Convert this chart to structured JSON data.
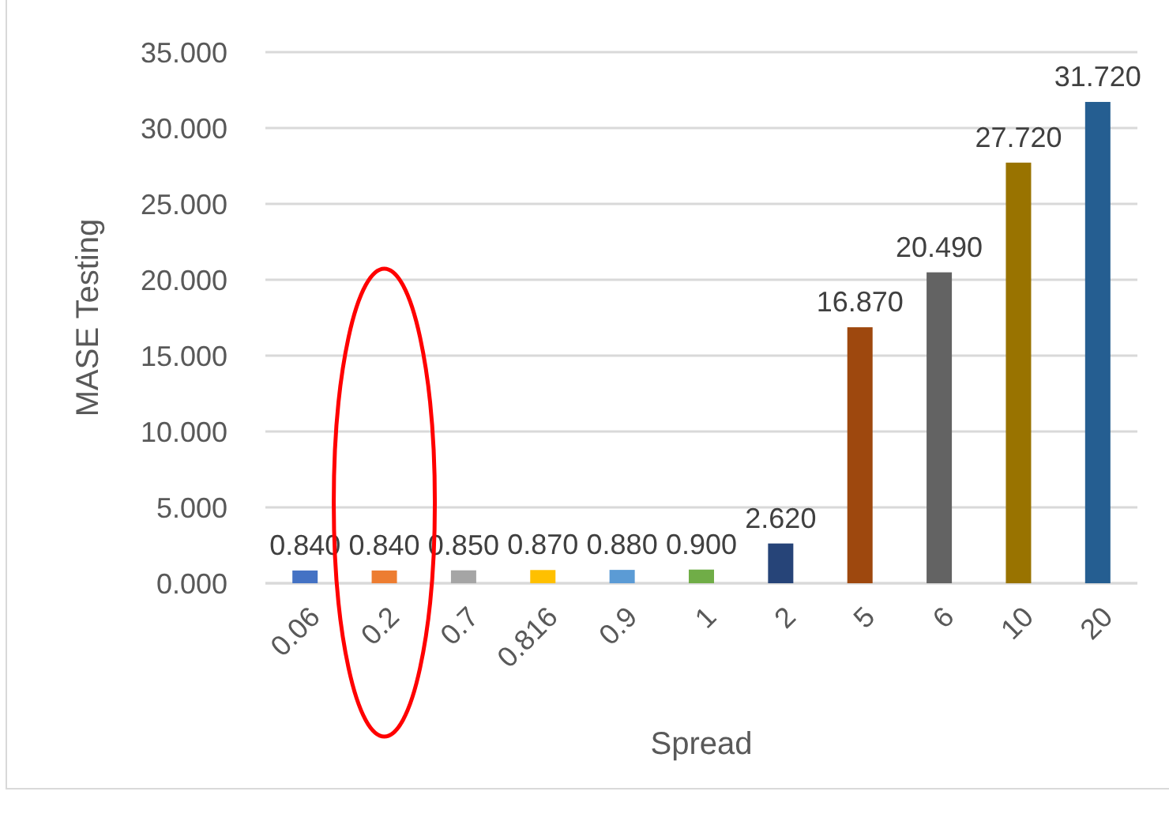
{
  "chart_data": {
    "type": "bar",
    "xlabel": "Spread",
    "ylabel": "MASE Testing",
    "categories": [
      "0.06",
      "0.2",
      "0.7",
      "0.816",
      "0.9",
      "1",
      "2",
      "5",
      "6",
      "10",
      "20"
    ],
    "values": [
      0.84,
      0.84,
      0.85,
      0.87,
      0.88,
      0.9,
      2.62,
      16.87,
      20.49,
      27.72,
      31.72
    ],
    "colors": [
      "#4472c4",
      "#ed7d31",
      "#a5a5a5",
      "#ffc000",
      "#5b9bd5",
      "#70ad47",
      "#264478",
      "#9e480e",
      "#636363",
      "#997300",
      "#255e91"
    ],
    "value_labels": [
      "0.840",
      "0.840",
      "0.850",
      "0.870",
      "0.880",
      "0.900",
      "2.620",
      "16.870",
      "20.490",
      "27.720",
      "31.720"
    ],
    "ylim": [
      0,
      35
    ],
    "yticks": [
      {
        "value": 0,
        "label": "0.000"
      },
      {
        "value": 5,
        "label": "5.000"
      },
      {
        "value": 10,
        "label": "10.000"
      },
      {
        "value": 15,
        "label": "15.000"
      },
      {
        "value": 20,
        "label": "20.000"
      },
      {
        "value": 25,
        "label": "25.000"
      },
      {
        "value": 30,
        "label": "30.000"
      },
      {
        "value": 35,
        "label": "35.000"
      }
    ],
    "grid": "y"
  }
}
